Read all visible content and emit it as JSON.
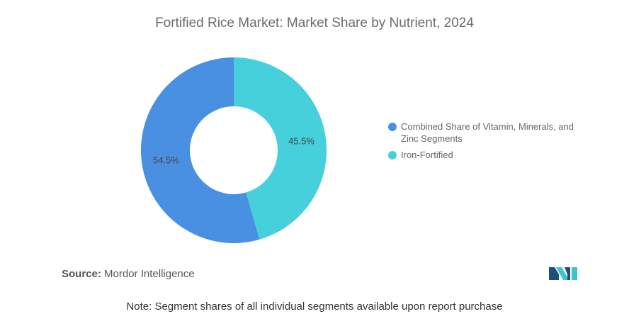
{
  "chart_data": {
    "type": "pie",
    "title": "Fortified Rice Market: Market Share by Nutrient, 2024",
    "categories": [
      "Combined Share of Vitamin, Minerals, and Zinc Segments",
      "Iron-Fortified"
    ],
    "values": [
      54.5,
      45.5
    ],
    "data_labels": [
      "54.5%",
      "45.5%"
    ],
    "colors": [
      "#4a90e2",
      "#45d0dc"
    ],
    "donut": true,
    "legend_position": "right"
  },
  "source": {
    "label": "Source:",
    "text": "Mordor Intelligence"
  },
  "note": "Note: Segment shares of all individual segments available upon report purchase",
  "logo": {
    "icon": "mordor-intelligence-logo-icon",
    "colors": [
      "#1f4e79",
      "#3cc5d0"
    ]
  }
}
